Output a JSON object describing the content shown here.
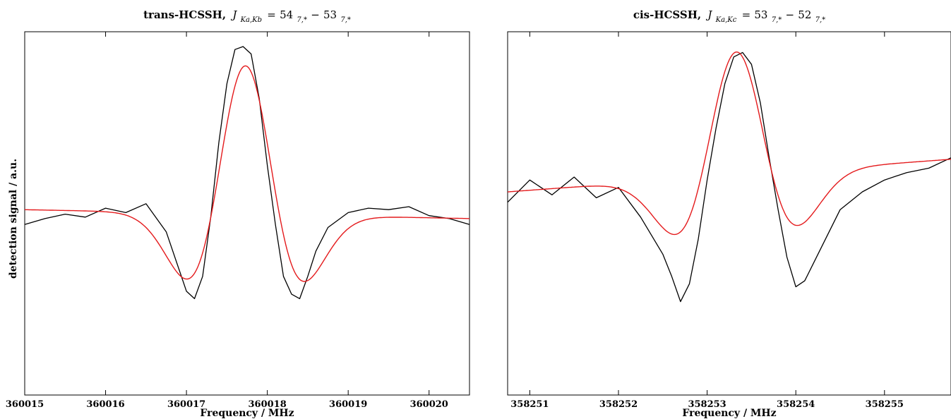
{
  "ylabel": "detection signal / a.u.",
  "chart_data": [
    {
      "type": "line",
      "title": "trans-HCSSH, J_{Ka,Kb} = 54_{7,*} − 53_{7,*}",
      "title_parts": {
        "mol": "trans-HCSSH,",
        "J": "J",
        "sub": "Ka,Kb",
        "eq": "=",
        "n1": "54",
        "s1": "7,*",
        "dash": "−",
        "n2": "53",
        "s2": "7,*"
      },
      "xlabel": "Frequency / MHz",
      "xlim": [
        360015,
        360020.5
      ],
      "ylim": [
        -1.25,
        1.2
      ],
      "x_ticks": [
        "360015",
        "360016",
        "360017",
        "360018",
        "360019",
        "360020"
      ],
      "y_ticks": [],
      "model": {
        "center": 360017.73,
        "sigma": 0.42,
        "amplitude": 1.0,
        "baseline": [
          [
            360015,
            0.0
          ],
          [
            360020.5,
            -0.06
          ]
        ]
      },
      "series": [
        {
          "color": "#000000",
          "x": [
            360015.0,
            360015.25,
            360015.5,
            360015.75,
            360016.0,
            360016.25,
            360016.5,
            360016.75,
            360017.0,
            360017.1,
            360017.2,
            360017.3,
            360017.4,
            360017.5,
            360017.6,
            360017.7,
            360017.8,
            360017.9,
            360018.0,
            360018.1,
            360018.2,
            360018.3,
            360018.4,
            360018.5,
            360018.6,
            360018.75,
            360019.0,
            360019.25,
            360019.5,
            360019.75,
            360020.0,
            360020.25,
            360020.5
          ],
          "y": [
            -0.1,
            -0.06,
            -0.03,
            -0.05,
            0.01,
            -0.02,
            0.04,
            -0.15,
            -0.55,
            -0.6,
            -0.45,
            -0.05,
            0.45,
            0.85,
            1.08,
            1.1,
            1.05,
            0.75,
            0.3,
            -0.1,
            -0.45,
            -0.57,
            -0.6,
            -0.45,
            -0.28,
            -0.12,
            -0.02,
            0.01,
            0.0,
            0.02,
            -0.04,
            -0.06,
            -0.1
          ]
        }
      ]
    },
    {
      "type": "line",
      "title": "cis-HCSSH, J_{Ka,Kc} = 53_{7,*} − 52_{7,*}",
      "title_parts": {
        "mol": "cis-HCSSH,",
        "J": "J",
        "sub": "Ka,Kc",
        "eq": "=",
        "n1": "53",
        "s1": "7,*",
        "dash": "−",
        "n2": "52",
        "s2": "7,*"
      },
      "xlabel": "Frequency / MHz",
      "xlim": [
        358250.75,
        358255.75
      ],
      "ylim": [
        -1.25,
        1.2
      ],
      "x_ticks": [
        "358251",
        "358252",
        "358253",
        "358254",
        "358255"
      ],
      "y_ticks": [],
      "model": {
        "center": 358253.33,
        "sigma": 0.4,
        "amplitude": 0.83,
        "baseline": [
          [
            358250.75,
            0.12
          ],
          [
            358255.75,
            0.34
          ]
        ]
      },
      "series": [
        {
          "color": "#000000",
          "x": [
            358250.75,
            358251.0,
            358251.25,
            358251.5,
            358251.75,
            358252.0,
            358252.25,
            358252.5,
            358252.6,
            358252.7,
            358252.8,
            358252.9,
            358253.0,
            358253.1,
            358253.2,
            358253.3,
            358253.4,
            358253.5,
            358253.6,
            358253.7,
            358253.8,
            358253.9,
            358254.0,
            358254.1,
            358254.25,
            358254.5,
            358254.75,
            358255.0,
            358255.25,
            358255.5,
            358255.75
          ],
          "y": [
            0.05,
            0.2,
            0.1,
            0.22,
            0.08,
            0.15,
            -0.05,
            -0.3,
            -0.45,
            -0.62,
            -0.5,
            -0.2,
            0.2,
            0.55,
            0.85,
            1.03,
            1.06,
            0.98,
            0.72,
            0.35,
            0.0,
            -0.32,
            -0.52,
            -0.48,
            -0.3,
            0.0,
            0.12,
            0.2,
            0.25,
            0.28,
            0.35
          ]
        }
      ]
    }
  ]
}
